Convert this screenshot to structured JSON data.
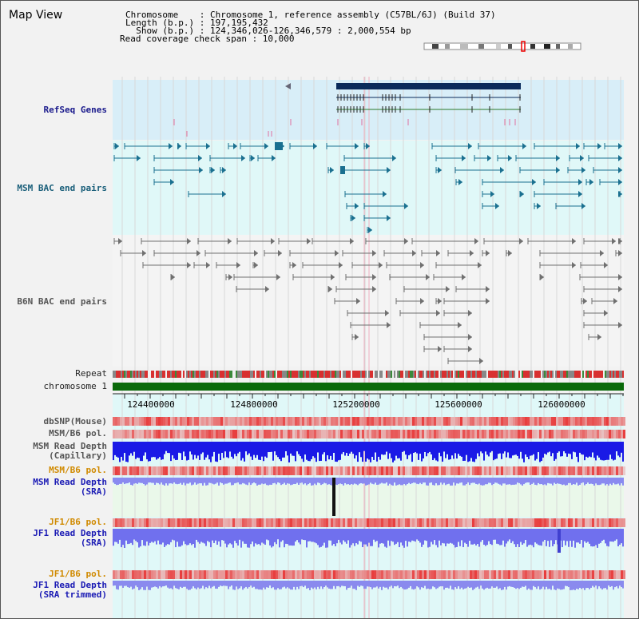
{
  "title": "Map View",
  "info": {
    "chrom_line": "Chromosome    : Chromosome 1, reference assembly (C57BL/6J) (Build 37)",
    "length_line": "Length (b.p.) : 197,195,432",
    "show_line": "  Show (b.p.) : 124,346,026-126,346,579 : 2,000,554 bp",
    "coverage_line": "Read coverage check span : 10,000"
  },
  "tracks": {
    "refseq": "RefSeq Genes",
    "msm_bac": "MSM BAC end pairs",
    "b6n_bac": "B6N BAC end pairs",
    "repeat": "Repeat",
    "chromosome": "chromosome 1",
    "dbsnp": "dbSNP(Mouse)",
    "msm_b6_pol_1": "MSM/B6 pol.",
    "msm_read_depth_cap": "MSM Read Depth\n(Capillary)",
    "msm_b6_pol_2": "MSM/B6 pol.",
    "msm_read_depth_sra": "MSM Read Depth\n(SRA)",
    "jf1_b6_pol_1": "JF1/B6 pol.",
    "jf1_read_depth_sra": "JF1 Read Depth\n(SRA)",
    "jf1_b6_pol_2": "JF1/B6 pol.",
    "jf1_read_depth_trim": "JF1 Read Depth\n(SRA trimmed)"
  },
  "axis": {
    "ticks": [
      "124400000",
      "124800000",
      "125200000",
      "125600000",
      "126000000"
    ]
  },
  "colors": {
    "refseq_bg": "#d8eef8",
    "bac_bg": "#e0f8f8",
    "gene_dark": "#0a2a5a",
    "msm_feature": "#1a7090",
    "b6n_feature": "#707070",
    "chromosome": "#0a6a0a",
    "depth_blue": "#1a1ae6",
    "depth_light": "#8a8af0",
    "pol_red": "#e83030"
  }
}
